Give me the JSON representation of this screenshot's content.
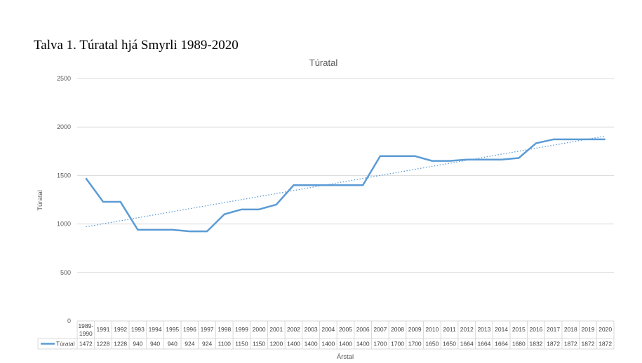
{
  "caption": "Talva 1. Túratal hjá Smyrli 1989-2020",
  "chart_data": {
    "type": "line",
    "title": "Túratal",
    "xlabel": "Árstal",
    "ylabel": "Túratal",
    "ylim": [
      0,
      2500
    ],
    "yticks": [
      "0",
      "500",
      "1000",
      "1500",
      "2000",
      "2500"
    ],
    "grid": true,
    "trendline": "linear",
    "categories": [
      [
        "1989-",
        "1990"
      ],
      [
        "1991"
      ],
      [
        "1992"
      ],
      [
        "1993"
      ],
      [
        "1994"
      ],
      [
        "1995"
      ],
      [
        "1996"
      ],
      [
        "1997"
      ],
      [
        "1998"
      ],
      [
        "1999"
      ],
      [
        "2000"
      ],
      [
        "2001"
      ],
      [
        "2002"
      ],
      [
        "2003"
      ],
      [
        "2004"
      ],
      [
        "2005"
      ],
      [
        "2006"
      ],
      [
        "2007"
      ],
      [
        "2008"
      ],
      [
        "2009"
      ],
      [
        "2010"
      ],
      [
        "2011"
      ],
      [
        "2012"
      ],
      [
        "2013"
      ],
      [
        "2014"
      ],
      [
        "2015"
      ],
      [
        "2016"
      ],
      [
        "2017"
      ],
      [
        "2018"
      ],
      [
        "2019"
      ],
      [
        "2020"
      ]
    ],
    "series": [
      {
        "name": "Túratal",
        "color": "#5b9bd5",
        "values": [
          1472,
          1228,
          1228,
          940,
          940,
          940,
          924,
          924,
          1100,
          1150,
          1150,
          1200,
          1400,
          1400,
          1400,
          1400,
          1400,
          1700,
          1700,
          1700,
          1650,
          1650,
          1664,
          1664,
          1664,
          1680,
          1832,
          1872,
          1872,
          1872,
          1872
        ]
      }
    ]
  }
}
